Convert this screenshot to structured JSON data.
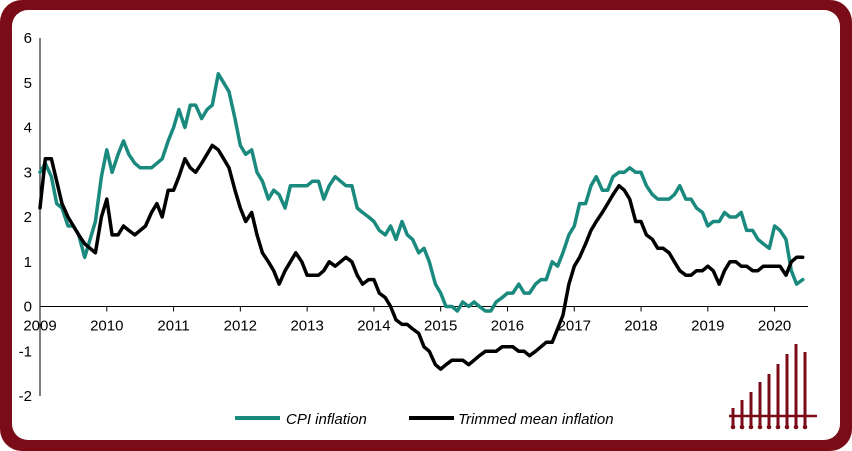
{
  "chart_data": {
    "type": "line",
    "title": "",
    "xlabel": "",
    "ylabel": "",
    "ylim": [
      -2,
      6
    ],
    "yticks": [
      "-2",
      "-1",
      "0",
      "1",
      "2",
      "3",
      "4",
      "5",
      "6"
    ],
    "xlim": [
      2009.0,
      2020.5
    ],
    "xticks": [
      "2009",
      "2010",
      "2011",
      "2012",
      "2013",
      "2014",
      "2015",
      "2016",
      "2017",
      "2018",
      "2019",
      "2020"
    ],
    "grid": false,
    "legend_position": "bottom",
    "series": [
      {
        "name": "CPI inflation",
        "color": "#1a8a7e",
        "x": [
          2009.0,
          2009.08,
          2009.17,
          2009.25,
          2009.33,
          2009.42,
          2009.5,
          2009.58,
          2009.67,
          2009.75,
          2009.83,
          2009.92,
          2010.0,
          2010.08,
          2010.17,
          2010.25,
          2010.33,
          2010.42,
          2010.5,
          2010.58,
          2010.67,
          2010.75,
          2010.83,
          2010.92,
          2011.0,
          2011.08,
          2011.17,
          2011.25,
          2011.33,
          2011.42,
          2011.5,
          2011.58,
          2011.67,
          2011.75,
          2011.83,
          2011.92,
          2012.0,
          2012.08,
          2012.17,
          2012.25,
          2012.33,
          2012.42,
          2012.5,
          2012.58,
          2012.67,
          2012.75,
          2012.83,
          2012.92,
          2013.0,
          2013.08,
          2013.17,
          2013.25,
          2013.33,
          2013.42,
          2013.5,
          2013.58,
          2013.67,
          2013.75,
          2013.83,
          2013.92,
          2014.0,
          2014.08,
          2014.17,
          2014.25,
          2014.33,
          2014.42,
          2014.5,
          2014.58,
          2014.67,
          2014.75,
          2014.83,
          2014.92,
          2015.0,
          2015.08,
          2015.17,
          2015.25,
          2015.33,
          2015.42,
          2015.5,
          2015.58,
          2015.67,
          2015.75,
          2015.83,
          2015.92,
          2016.0,
          2016.08,
          2016.17,
          2016.25,
          2016.33,
          2016.42,
          2016.5,
          2016.58,
          2016.67,
          2016.75,
          2016.83,
          2016.92,
          2017.0,
          2017.08,
          2017.17,
          2017.25,
          2017.33,
          2017.42,
          2017.5,
          2017.58,
          2017.67,
          2017.75,
          2017.83,
          2017.92,
          2018.0,
          2018.08,
          2018.17,
          2018.25,
          2018.33,
          2018.42,
          2018.5,
          2018.58,
          2018.67,
          2018.75,
          2018.83,
          2018.92,
          2019.0,
          2019.08,
          2019.17,
          2019.25,
          2019.33,
          2019.42,
          2019.5,
          2019.58,
          2019.67,
          2019.75,
          2019.83,
          2019.92,
          2020.0,
          2020.08,
          2020.17,
          2020.25,
          2020.33,
          2020.42
        ],
        "y": [
          3.0,
          3.2,
          2.9,
          2.3,
          2.2,
          1.8,
          1.8,
          1.6,
          1.1,
          1.5,
          1.9,
          2.9,
          3.5,
          3.0,
          3.4,
          3.7,
          3.4,
          3.2,
          3.1,
          3.1,
          3.1,
          3.2,
          3.3,
          3.7,
          4.0,
          4.4,
          4.0,
          4.5,
          4.5,
          4.2,
          4.4,
          4.5,
          5.2,
          5.0,
          4.8,
          4.2,
          3.6,
          3.4,
          3.5,
          3.0,
          2.8,
          2.4,
          2.6,
          2.5,
          2.2,
          2.7,
          2.7,
          2.7,
          2.7,
          2.8,
          2.8,
          2.4,
          2.7,
          2.9,
          2.8,
          2.7,
          2.7,
          2.2,
          2.1,
          2.0,
          1.9,
          1.7,
          1.6,
          1.8,
          1.5,
          1.9,
          1.6,
          1.5,
          1.2,
          1.3,
          1.0,
          0.5,
          0.3,
          0.0,
          0.0,
          -0.1,
          0.1,
          0.0,
          0.1,
          0.0,
          -0.1,
          -0.1,
          0.1,
          0.2,
          0.3,
          0.3,
          0.5,
          0.3,
          0.3,
          0.5,
          0.6,
          0.6,
          1.0,
          0.9,
          1.2,
          1.6,
          1.8,
          2.3,
          2.3,
          2.7,
          2.9,
          2.6,
          2.6,
          2.9,
          3.0,
          3.0,
          3.1,
          3.0,
          3.0,
          2.7,
          2.5,
          2.4,
          2.4,
          2.4,
          2.5,
          2.7,
          2.4,
          2.4,
          2.2,
          2.1,
          1.8,
          1.9,
          1.9,
          2.1,
          2.0,
          2.0,
          2.1,
          1.7,
          1.7,
          1.5,
          1.4,
          1.3,
          1.8,
          1.7,
          1.5,
          0.8,
          0.5,
          0.6
        ]
      },
      {
        "name": "Trimmed mean inflation",
        "color": "#000000",
        "x": [
          2009.0,
          2009.08,
          2009.17,
          2009.25,
          2009.33,
          2009.42,
          2009.5,
          2009.58,
          2009.67,
          2009.75,
          2009.83,
          2009.92,
          2010.0,
          2010.08,
          2010.17,
          2010.25,
          2010.33,
          2010.42,
          2010.5,
          2010.58,
          2010.67,
          2010.75,
          2010.83,
          2010.92,
          2011.0,
          2011.08,
          2011.17,
          2011.25,
          2011.33,
          2011.42,
          2011.5,
          2011.58,
          2011.67,
          2011.75,
          2011.83,
          2011.92,
          2012.0,
          2012.08,
          2012.17,
          2012.25,
          2012.33,
          2012.42,
          2012.5,
          2012.58,
          2012.67,
          2012.75,
          2012.83,
          2012.92,
          2013.0,
          2013.08,
          2013.17,
          2013.25,
          2013.33,
          2013.42,
          2013.5,
          2013.58,
          2013.67,
          2013.75,
          2013.83,
          2013.92,
          2014.0,
          2014.08,
          2014.17,
          2014.25,
          2014.33,
          2014.42,
          2014.5,
          2014.58,
          2014.67,
          2014.75,
          2014.83,
          2014.92,
          2015.0,
          2015.08,
          2015.17,
          2015.25,
          2015.33,
          2015.42,
          2015.5,
          2015.58,
          2015.67,
          2015.75,
          2015.83,
          2015.92,
          2016.0,
          2016.08,
          2016.17,
          2016.25,
          2016.33,
          2016.42,
          2016.5,
          2016.58,
          2016.67,
          2016.75,
          2016.83,
          2016.92,
          2017.0,
          2017.08,
          2017.17,
          2017.25,
          2017.33,
          2017.42,
          2017.5,
          2017.58,
          2017.67,
          2017.75,
          2017.83,
          2017.92,
          2018.0,
          2018.08,
          2018.17,
          2018.25,
          2018.33,
          2018.42,
          2018.5,
          2018.58,
          2018.67,
          2018.75,
          2018.83,
          2018.92,
          2019.0,
          2019.08,
          2019.17,
          2019.25,
          2019.33,
          2019.42,
          2019.5,
          2019.58,
          2019.67,
          2019.75,
          2019.83,
          2019.92,
          2020.0,
          2020.08,
          2020.17,
          2020.25,
          2020.33,
          2020.42
        ],
        "y": [
          2.2,
          3.3,
          3.3,
          2.8,
          2.3,
          2.0,
          1.8,
          1.6,
          1.4,
          1.3,
          1.2,
          2.0,
          2.4,
          1.6,
          1.6,
          1.8,
          1.7,
          1.6,
          1.7,
          1.8,
          2.1,
          2.3,
          2.0,
          2.6,
          2.6,
          2.9,
          3.3,
          3.1,
          3.0,
          3.2,
          3.4,
          3.6,
          3.5,
          3.3,
          3.1,
          2.6,
          2.2,
          1.9,
          2.1,
          1.6,
          1.2,
          1.0,
          0.8,
          0.5,
          0.8,
          1.0,
          1.2,
          1.0,
          0.7,
          0.7,
          0.7,
          0.8,
          1.0,
          0.9,
          1.0,
          1.1,
          1.0,
          0.7,
          0.5,
          0.6,
          0.6,
          0.3,
          0.2,
          0.0,
          -0.3,
          -0.4,
          -0.4,
          -0.5,
          -0.6,
          -0.9,
          -1.0,
          -1.3,
          -1.4,
          -1.3,
          -1.2,
          -1.2,
          -1.2,
          -1.3,
          -1.2,
          -1.1,
          -1.0,
          -1.0,
          -1.0,
          -0.9,
          -0.9,
          -0.9,
          -1.0,
          -1.0,
          -1.1,
          -1.0,
          -0.9,
          -0.8,
          -0.8,
          -0.5,
          -0.2,
          0.5,
          0.9,
          1.1,
          1.4,
          1.7,
          1.9,
          2.1,
          2.3,
          2.5,
          2.7,
          2.6,
          2.4,
          1.9,
          1.9,
          1.6,
          1.5,
          1.3,
          1.3,
          1.2,
          1.0,
          0.8,
          0.7,
          0.7,
          0.8,
          0.8,
          0.9,
          0.8,
          0.5,
          0.8,
          1.0,
          1.0,
          0.9,
          0.9,
          0.8,
          0.8,
          0.9,
          0.9,
          0.9,
          0.9,
          0.7,
          1.0,
          1.1,
          1.1
        ]
      }
    ]
  }
}
